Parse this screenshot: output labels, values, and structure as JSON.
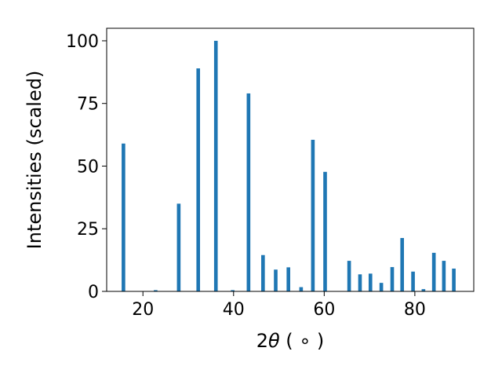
{
  "chart_data": {
    "type": "bar",
    "title": "",
    "xlabel_main": "2",
    "xlabel_symbol": "θ",
    "xlabel_unit": " ( ∘ )",
    "ylabel": "Intensities (scaled)",
    "xlim": [
      12,
      93
    ],
    "ylim": [
      0,
      105
    ],
    "xticks": [
      20,
      40,
      60,
      80
    ],
    "yticks": [
      0,
      25,
      50,
      75,
      100
    ],
    "bar_width": 0.8,
    "color": "#1f77b4",
    "grid": false,
    "x": [
      15.7,
      22.8,
      27.9,
      32.2,
      36.1,
      39.8,
      43.3,
      46.5,
      49.3,
      52.1,
      54.9,
      57.5,
      60.2,
      65.5,
      67.9,
      70.2,
      72.6,
      75.0,
      77.2,
      79.6,
      81.9,
      84.2,
      86.4,
      88.6
    ],
    "values": [
      59,
      0.5,
      35,
      89,
      100,
      0.5,
      79,
      14.5,
      8.7,
      9.6,
      1.7,
      60.5,
      47.7,
      12.2,
      6.8,
      7.1,
      3.4,
      9.7,
      21.3,
      7.9,
      0.9,
      15.4,
      12.2,
      9.1
    ]
  }
}
